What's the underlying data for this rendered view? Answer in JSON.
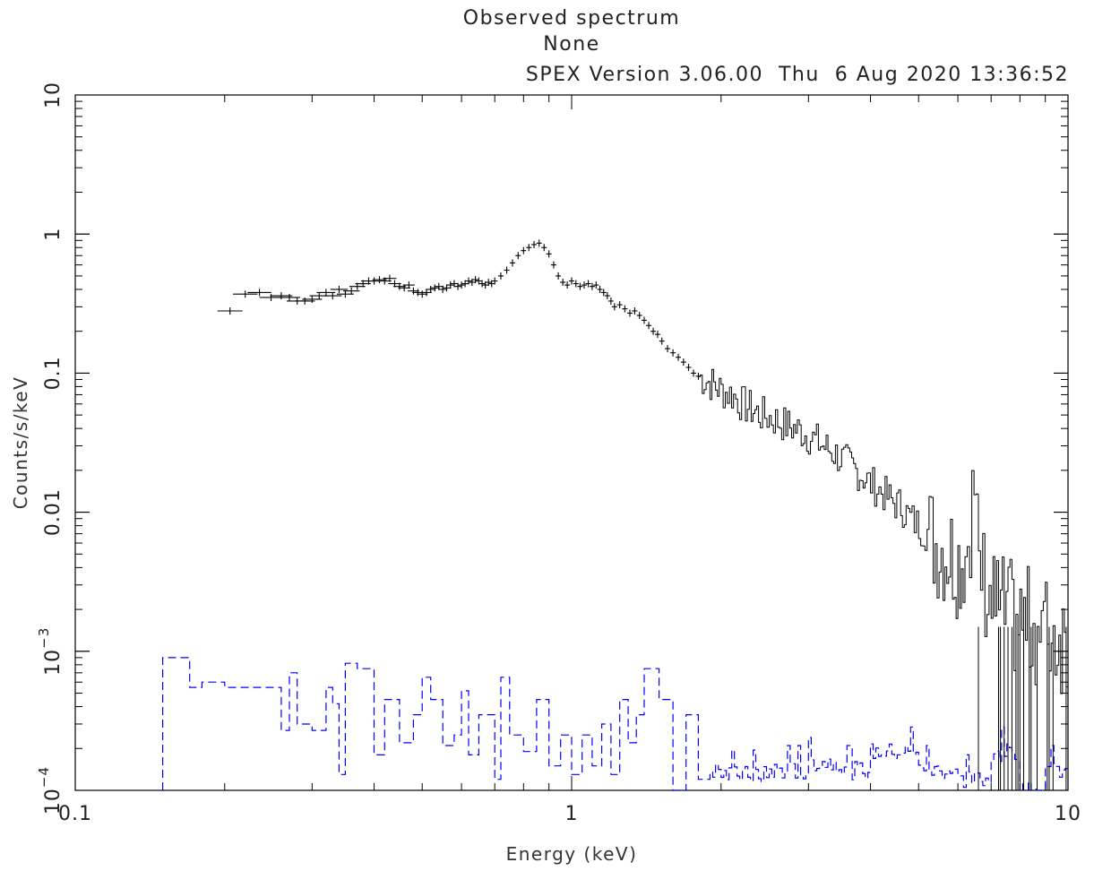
{
  "header": {
    "title": "Observed spectrum",
    "subtitle": "None",
    "version_line": "SPEX Version 3.06.00  Thu  6 Aug 2020 13:36:52"
  },
  "chart_data": {
    "type": "line",
    "xlabel": "Energy (keV)",
    "ylabel": "Counts/s/keV",
    "xscale": "log",
    "yscale": "log",
    "xlim": [
      0.1,
      10
    ],
    "ylim": [
      0.0001,
      10
    ],
    "x_tick_labels": [
      "0.1",
      "1",
      "10"
    ],
    "y_tick_labels": [
      "10^-4",
      "10^-3",
      "0.01",
      "0.1",
      "1",
      "10"
    ],
    "grid": false,
    "colors": {
      "data": "#000000",
      "background": "#0000ff",
      "axes": "#000000"
    },
    "series": [
      {
        "style": "crosses-with-error-bars",
        "x": [
          0.205,
          0.22,
          0.235,
          0.248,
          0.26,
          0.27,
          0.28,
          0.29,
          0.3,
          0.31,
          0.32,
          0.33,
          0.34,
          0.35,
          0.36,
          0.37,
          0.38,
          0.39,
          0.4,
          0.41,
          0.42,
          0.43,
          0.44,
          0.45,
          0.46,
          0.47,
          0.48,
          0.49,
          0.5,
          0.51,
          0.52,
          0.53,
          0.54,
          0.55,
          0.56,
          0.57,
          0.58,
          0.59,
          0.6,
          0.61,
          0.62,
          0.63,
          0.64,
          0.65,
          0.66,
          0.67,
          0.68,
          0.69,
          0.7,
          0.72,
          0.74,
          0.76,
          0.78,
          0.8,
          0.82,
          0.84,
          0.86,
          0.88,
          0.9,
          0.92,
          0.94,
          0.96,
          0.98,
          1.0,
          1.02,
          1.04,
          1.06,
          1.08,
          1.1,
          1.12,
          1.14,
          1.16,
          1.18,
          1.2,
          1.22,
          1.25,
          1.28,
          1.31,
          1.34,
          1.37,
          1.4,
          1.43,
          1.46,
          1.49,
          1.52,
          1.56,
          1.6,
          1.64,
          1.68,
          1.72,
          1.76,
          1.8
        ],
        "values": [
          0.28,
          0.37,
          0.38,
          0.35,
          0.36,
          0.35,
          0.33,
          0.33,
          0.34,
          0.36,
          0.38,
          0.36,
          0.4,
          0.37,
          0.39,
          0.42,
          0.44,
          0.46,
          0.46,
          0.47,
          0.46,
          0.48,
          0.44,
          0.42,
          0.41,
          0.43,
          0.39,
          0.38,
          0.37,
          0.38,
          0.4,
          0.41,
          0.42,
          0.4,
          0.41,
          0.43,
          0.44,
          0.42,
          0.43,
          0.44,
          0.46,
          0.45,
          0.47,
          0.46,
          0.44,
          0.43,
          0.45,
          0.44,
          0.46,
          0.5,
          0.55,
          0.62,
          0.7,
          0.76,
          0.8,
          0.84,
          0.86,
          0.8,
          0.72,
          0.6,
          0.5,
          0.45,
          0.43,
          0.46,
          0.44,
          0.42,
          0.43,
          0.44,
          0.42,
          0.43,
          0.4,
          0.38,
          0.36,
          0.33,
          0.3,
          0.31,
          0.29,
          0.27,
          0.28,
          0.26,
          0.24,
          0.22,
          0.2,
          0.19,
          0.17,
          0.15,
          0.14,
          0.13,
          0.12,
          0.11,
          0.1,
          0.095
        ]
      },
      {
        "style": "noisy-steps",
        "x": [
          1.8,
          1.9,
          2.0,
          2.1,
          2.2,
          2.3,
          2.4,
          2.5,
          2.6,
          2.7,
          2.8,
          2.9,
          3.0,
          3.2,
          3.4,
          3.6,
          3.8,
          4.0,
          4.2,
          4.4,
          4.6,
          4.8,
          5.0,
          5.2,
          5.4,
          5.6,
          5.8,
          6.0,
          6.2,
          6.4,
          6.6,
          6.8,
          7.0,
          7.5,
          8.0,
          8.5,
          9.0,
          9.5,
          10.0
        ],
        "values": [
          0.095,
          0.085,
          0.075,
          0.07,
          0.06,
          0.055,
          0.05,
          0.048,
          0.045,
          0.042,
          0.04,
          0.038,
          0.035,
          0.03,
          0.026,
          0.022,
          0.019,
          0.016,
          0.014,
          0.012,
          0.011,
          0.009,
          0.008,
          0.007,
          0.006,
          0.0055,
          0.005,
          0.0045,
          0.005,
          0.012,
          0.004,
          0.003,
          0.0022,
          0.0018,
          0.0016,
          0.0015,
          0.0014,
          0.0013,
          0.0012
        ]
      },
      {
        "style": "dashed-steps",
        "x": [
          0.15,
          0.16,
          0.17,
          0.18,
          0.2,
          0.22,
          0.24,
          0.26,
          0.27,
          0.28,
          0.3,
          0.32,
          0.33,
          0.34,
          0.35,
          0.37,
          0.4,
          0.42,
          0.45,
          0.48,
          0.5,
          0.52,
          0.55,
          0.58,
          0.6,
          0.62,
          0.65,
          0.7,
          0.72,
          0.75,
          0.8,
          0.85,
          0.9,
          0.95,
          1.0,
          1.05,
          1.1,
          1.15,
          1.2,
          1.25,
          1.3,
          1.35,
          1.4,
          1.5,
          1.6,
          1.7,
          1.8,
          1.9,
          2.0,
          2.5,
          3.0,
          3.5,
          4.0,
          5.0,
          6.0,
          7.0,
          8.0,
          9.0,
          10.0
        ],
        "values": [
          0.0009,
          0.0009,
          0.00055,
          0.0006,
          0.00055,
          0.00055,
          0.00055,
          0.00027,
          0.0007,
          0.0003,
          0.00027,
          0.00055,
          0.00042,
          0.00013,
          0.00082,
          0.00075,
          0.00018,
          0.00045,
          0.00022,
          0.00035,
          0.00065,
          0.00045,
          0.00021,
          0.00025,
          0.00052,
          0.00018,
          0.00035,
          0.00012,
          0.00065,
          0.00025,
          0.00019,
          0.00045,
          0.00015,
          0.00025,
          0.00013,
          0.00025,
          0.00015,
          0.0003,
          0.00013,
          0.00045,
          0.00022,
          0.00035,
          0.00075,
          0.00045,
          0.0001,
          0.00035,
          0.00012,
          0.00014,
          0.00013,
          0.00014,
          0.00016,
          0.00014,
          0.00019,
          0.00014,
          0.00012,
          0.00019,
          0.0001,
          0.00014,
          0.0001
        ]
      }
    ]
  }
}
